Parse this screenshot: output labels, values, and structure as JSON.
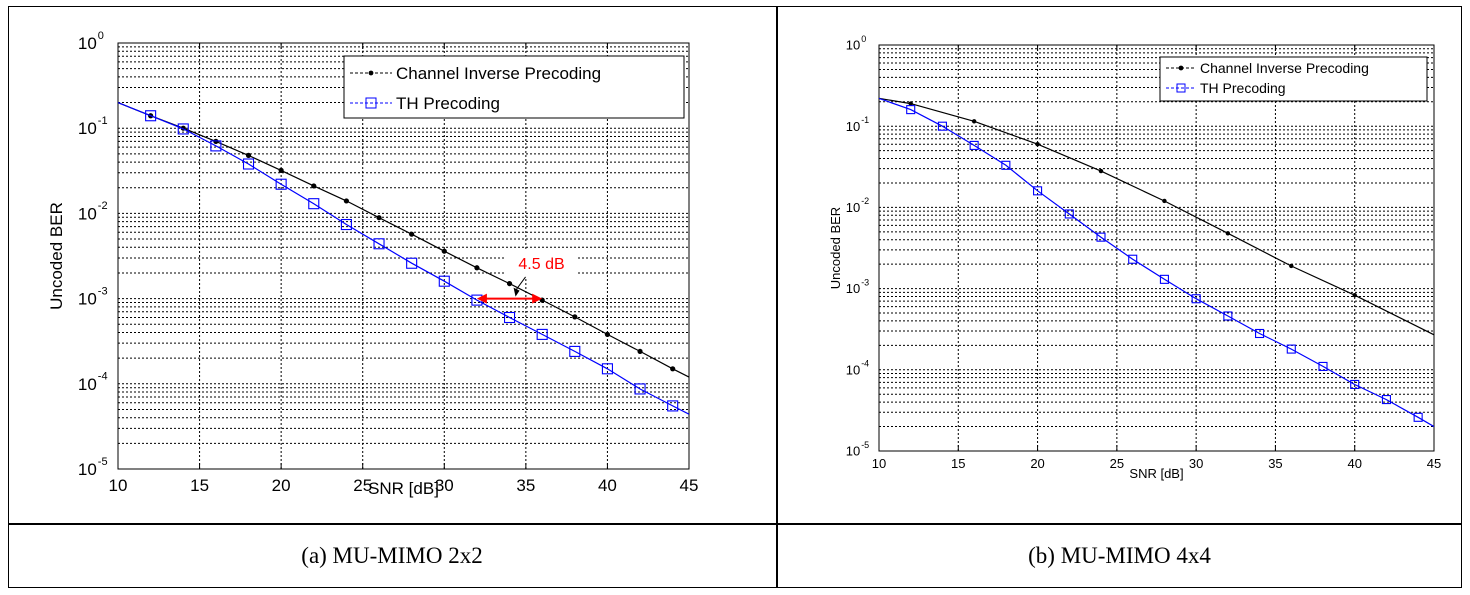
{
  "captions": {
    "left": "(a)  MU-MIMO 2x2",
    "right": "(b)  MU-MIMO 4x4"
  },
  "colors": {
    "channel_inverse": "#000000",
    "th": "#0000ff",
    "annotation": "#ff0000"
  },
  "chart_data": [
    {
      "type": "line",
      "xlabel": "SNR [dB]",
      "ylabel": "Uncoded BER",
      "xlim": [
        10,
        45
      ],
      "ylim": [
        1e-05,
        1
      ],
      "yscale": "log",
      "xticks": [
        10,
        15,
        20,
        25,
        30,
        35,
        40,
        45
      ],
      "yticks": [
        -5,
        -4,
        -3,
        -2,
        -1,
        0
      ],
      "grid": true,
      "legend_position": "top-right",
      "series": [
        {
          "name": "Channel Inverse Precoding",
          "marker": "dot",
          "x": [
            10,
            12,
            14,
            16,
            18,
            20,
            22,
            24,
            26,
            28,
            30,
            32,
            34,
            36,
            38,
            40,
            42,
            44,
            45
          ],
          "y": [
            0.2,
            0.14,
            0.1,
            0.07,
            0.048,
            0.032,
            0.021,
            0.014,
            0.0089,
            0.0057,
            0.0036,
            0.0023,
            0.0015,
            0.00096,
            0.00061,
            0.00038,
            0.00024,
            0.00015,
            0.00012
          ]
        },
        {
          "name": "TH Precoding",
          "marker": "square",
          "x": [
            10,
            12,
            14,
            16,
            18,
            20,
            22,
            24,
            26,
            28,
            30,
            32,
            34,
            36,
            38,
            40,
            42,
            44,
            45
          ],
          "y": [
            0.2,
            0.14,
            0.098,
            0.062,
            0.038,
            0.022,
            0.013,
            0.0074,
            0.0044,
            0.0026,
            0.0016,
            0.00096,
            0.0006,
            0.00038,
            0.00024,
            0.00015,
            8.7e-05,
            5.5e-05,
            4.4e-05
          ]
        }
      ],
      "annotation": {
        "text": "4.5 dB",
        "arrow_x": [
          32,
          36
        ],
        "arrow_y": 0.001,
        "pointer_from": [
          34,
          0.0017
        ]
      }
    },
    {
      "type": "line",
      "xlabel": "SNR [dB]",
      "ylabel": "Uncoded BER",
      "xlim": [
        10,
        45
      ],
      "ylim": [
        1e-05,
        1
      ],
      "yscale": "log",
      "xticks": [
        10,
        15,
        20,
        25,
        30,
        35,
        40,
        45
      ],
      "yticks": [
        -5,
        -4,
        -3,
        -2,
        -1,
        0
      ],
      "grid": true,
      "legend_position": "top-right",
      "series": [
        {
          "name": "Channel Inverse Precoding",
          "marker": "dot",
          "x": [
            10,
            12,
            16,
            20,
            24,
            28,
            32,
            36,
            40,
            45
          ],
          "y": [
            0.22,
            0.19,
            0.115,
            0.06,
            0.028,
            0.012,
            0.0048,
            0.0019,
            0.00083,
            0.00027
          ]
        },
        {
          "name": "TH Precoding",
          "marker": "square",
          "x": [
            10,
            12,
            14,
            16,
            18,
            20,
            22,
            24,
            26,
            28,
            30,
            32,
            34,
            36,
            38,
            40,
            42,
            44,
            45
          ],
          "y": [
            0.22,
            0.16,
            0.1,
            0.058,
            0.033,
            0.016,
            0.0083,
            0.0043,
            0.0023,
            0.0013,
            0.00075,
            0.00046,
            0.00028,
            0.00018,
            0.00011,
            6.6e-05,
            4.3e-05,
            2.6e-05,
            2e-05
          ]
        }
      ]
    }
  ]
}
